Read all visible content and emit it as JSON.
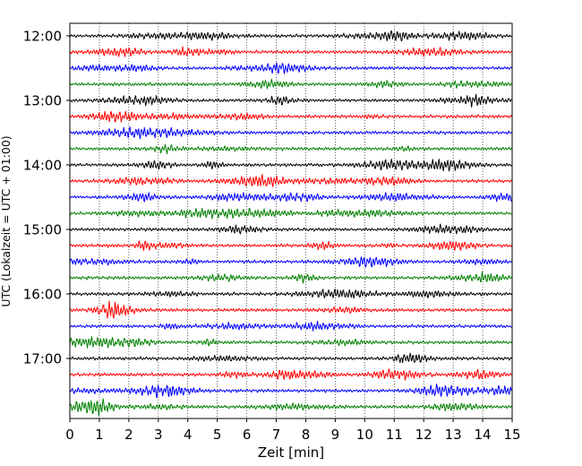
{
  "chart_data": {
    "type": "line",
    "xlabel": "Zeit  [min]",
    "ylabel": "UTC (Lokalzeit = UTC + 01:00)",
    "xlim": [
      0,
      15
    ],
    "x_ticks": [
      "0",
      "1",
      "2",
      "3",
      "4",
      "5",
      "6",
      "7",
      "8",
      "9",
      "10",
      "11",
      "12",
      "13",
      "14",
      "15"
    ],
    "y_ticks": [
      "12:00",
      "13:00",
      "14:00",
      "15:00",
      "16:00",
      "17:00"
    ],
    "grid": true,
    "trace_colors": [
      "#000000",
      "#ff0000",
      "#0000ff",
      "#008000"
    ],
    "traces": [
      {
        "start": "12:00",
        "color": "#000000"
      },
      {
        "start": "12:15",
        "color": "#ff0000"
      },
      {
        "start": "12:30",
        "color": "#0000ff"
      },
      {
        "start": "12:45",
        "color": "#008000"
      },
      {
        "start": "13:00",
        "color": "#000000"
      },
      {
        "start": "13:15",
        "color": "#ff0000"
      },
      {
        "start": "13:30",
        "color": "#0000ff"
      },
      {
        "start": "13:45",
        "color": "#008000"
      },
      {
        "start": "14:00",
        "color": "#000000"
      },
      {
        "start": "14:15",
        "color": "#ff0000"
      },
      {
        "start": "14:30",
        "color": "#0000ff"
      },
      {
        "start": "14:45",
        "color": "#008000"
      },
      {
        "start": "15:00",
        "color": "#000000"
      },
      {
        "start": "15:15",
        "color": "#ff0000"
      },
      {
        "start": "15:30",
        "color": "#0000ff"
      },
      {
        "start": "15:45",
        "color": "#008000"
      },
      {
        "start": "16:00",
        "color": "#000000"
      },
      {
        "start": "16:15",
        "color": "#ff0000"
      },
      {
        "start": "16:30",
        "color": "#0000ff"
      },
      {
        "start": "16:45",
        "color": "#008000"
      },
      {
        "start": "17:00",
        "color": "#000000"
      },
      {
        "start": "17:15",
        "color": "#ff0000"
      },
      {
        "start": "17:30",
        "color": "#0000ff"
      },
      {
        "start": "17:45",
        "color": "#008000"
      }
    ]
  }
}
